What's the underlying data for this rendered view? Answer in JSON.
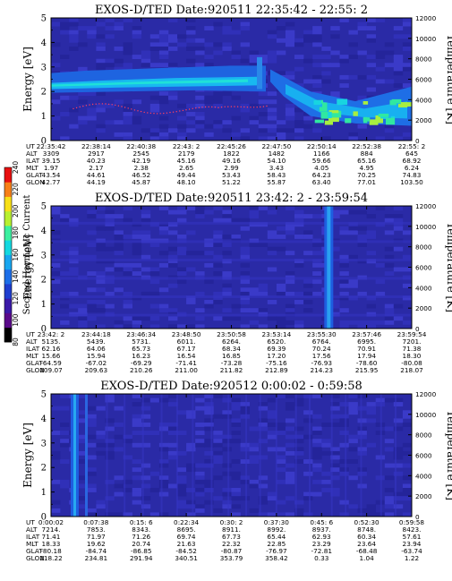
{
  "chart_data": [
    {
      "type": "heatmap",
      "title": "EXOS-D/TED",
      "date": "Date:920511",
      "time_range": "22:35:42 - 22:55: 2",
      "ylabel": "Energy [eV]",
      "y2label": "Temperature [K]",
      "ylim": [
        0,
        5
      ],
      "y2lim": [
        0,
        12000
      ],
      "yticks": [
        "0",
        "1",
        "2",
        "3",
        "4",
        "5"
      ],
      "y2ticks": [
        "0",
        "2000",
        "4000",
        "6000",
        "8000",
        "10000",
        "12000"
      ],
      "ephemeris_labels": [
        "UT",
        "ALT",
        "ILAT",
        "MLT",
        "GLAT",
        "GLON"
      ],
      "ephemeris": [
        [
          "22:35:42",
          "22:38:14",
          "22:40:38",
          "22:43: 2",
          "22:45:26",
          "22:47:50",
          "22:50:14",
          "22:52:38",
          "22:55: 2"
        ],
        [
          "3309",
          "2917",
          "2545",
          "2179",
          "1822",
          "1482",
          "1166",
          "884",
          "645"
        ],
        [
          "39.15",
          "40.23",
          "42.19",
          "45.16",
          "49.16",
          "54.10",
          "59.66",
          "65.16",
          "68.92"
        ],
        [
          "1.97",
          "2.17",
          "2.38",
          "2.65",
          "2.99",
          "3.43",
          "4.05",
          "4.95",
          "6.24"
        ],
        [
          "43.54",
          "44.61",
          "46.52",
          "49.44",
          "53.43",
          "58.43",
          "64.23",
          "70.25",
          "74.83"
        ],
        [
          "42.77",
          "44.19",
          "45.87",
          "48.10",
          "51.22",
          "55.87",
          "63.40",
          "77.01",
          "103.50"
        ]
      ]
    },
    {
      "type": "heatmap",
      "title": "EXOS-D/TED",
      "date": "Date:920511",
      "time_range": "23:42: 2 - 23:59:54",
      "ylabel": "Energy [eV]",
      "y2label": "Temperature [K]",
      "ylim": [
        0,
        5
      ],
      "y2lim": [
        0,
        12000
      ],
      "yticks": [
        "0",
        "1",
        "2",
        "3",
        "4",
        "5"
      ],
      "y2ticks": [
        "0",
        "2000",
        "4000",
        "6000",
        "8000",
        "10000",
        "12000"
      ],
      "ephemeris_labels": [
        "UT",
        "ALT",
        "ILAT",
        "MLT",
        "GLAT",
        "GLON"
      ],
      "ephemeris": [
        [
          "23:42: 2",
          "23:44:18",
          "23:46:34",
          "23:48:50",
          "23:50:58",
          "23:53:14",
          "23:55:30",
          "23:57:46",
          "23:59:54"
        ],
        [
          "5135.",
          "5439.",
          "5731.",
          "6011.",
          "6264.",
          "6520.",
          "6764.",
          "6995.",
          "7201."
        ],
        [
          "62.16",
          "64.06",
          "65.73",
          "67.17",
          "68.34",
          "69.39",
          "70.24",
          "70.91",
          "71.38"
        ],
        [
          "15.66",
          "15.94",
          "16.23",
          "16.54",
          "16.85",
          "17.20",
          "17.56",
          "17.94",
          "18.30"
        ],
        [
          "-64.59",
          "-67.02",
          "-69.29",
          "-71.41",
          "-73.28",
          "-75.16",
          "-76.93",
          "-78.60",
          "-80.08"
        ],
        [
          "209.07",
          "209.63",
          "210.26",
          "211.00",
          "211.82",
          "212.89",
          "214.23",
          "215.95",
          "218.07"
        ]
      ]
    },
    {
      "type": "heatmap",
      "title": "EXOS-D/TED",
      "date": "Date:920512",
      "time_range": "0:00:02 - 0:59:58",
      "ylabel": "Energy [eV]",
      "y2label": "Temperature [K]",
      "ylim": [
        0,
        5
      ],
      "y2lim": [
        0,
        12000
      ],
      "yticks": [
        "0",
        "1",
        "2",
        "3",
        "4",
        "5"
      ],
      "y2ticks": [
        "0",
        "2000",
        "4000",
        "6000",
        "8000",
        "10000",
        "12000"
      ],
      "ephemeris_labels": [
        "UT",
        "ALT",
        "ILAT",
        "MLT",
        "GLAT",
        "GLON"
      ],
      "ephemeris": [
        [
          "0:00:02",
          "0:07:38",
          "0:15: 6",
          "0:22:34",
          "0:30: 2",
          "0:37:30",
          "0:45: 6",
          "0:52:30",
          "0:59:58"
        ],
        [
          "7214.",
          "7853.",
          "8343.",
          "8695.",
          "8911.",
          "8992.",
          "8937.",
          "8748.",
          "8423."
        ],
        [
          "71.41",
          "71.97",
          "71.26",
          "69.74",
          "67.73",
          "65.44",
          "62.93",
          "60.34",
          "57.61"
        ],
        [
          "18.33",
          "19.62",
          "20.74",
          "21.63",
          "22.32",
          "22.85",
          "23.29",
          "23.64",
          "23.94"
        ],
        [
          "-80.18",
          "-84.74",
          "-86.85",
          "-84.52",
          "-80.87",
          "-76.97",
          "-72.81",
          "-68.48",
          "-63.74"
        ],
        [
          "218.22",
          "234.81",
          "291.94",
          "340.51",
          "353.79",
          "358.42",
          "0.33",
          "1.04",
          "1.22"
        ]
      ]
    }
  ],
  "colorbar": {
    "label": "Second Harmonic Current",
    "ticks": [
      "80",
      "100",
      "120",
      "140",
      "160",
      "180",
      "200",
      "220",
      "240"
    ],
    "colors": [
      "#000000",
      "#5a0a8a",
      "#3a1aa8",
      "#1f3ecf",
      "#1d6ee8",
      "#18a6f0",
      "#14d8e0",
      "#3cf0a0",
      "#b8f030",
      "#f8e018",
      "#f88018",
      "#e81010"
    ]
  }
}
